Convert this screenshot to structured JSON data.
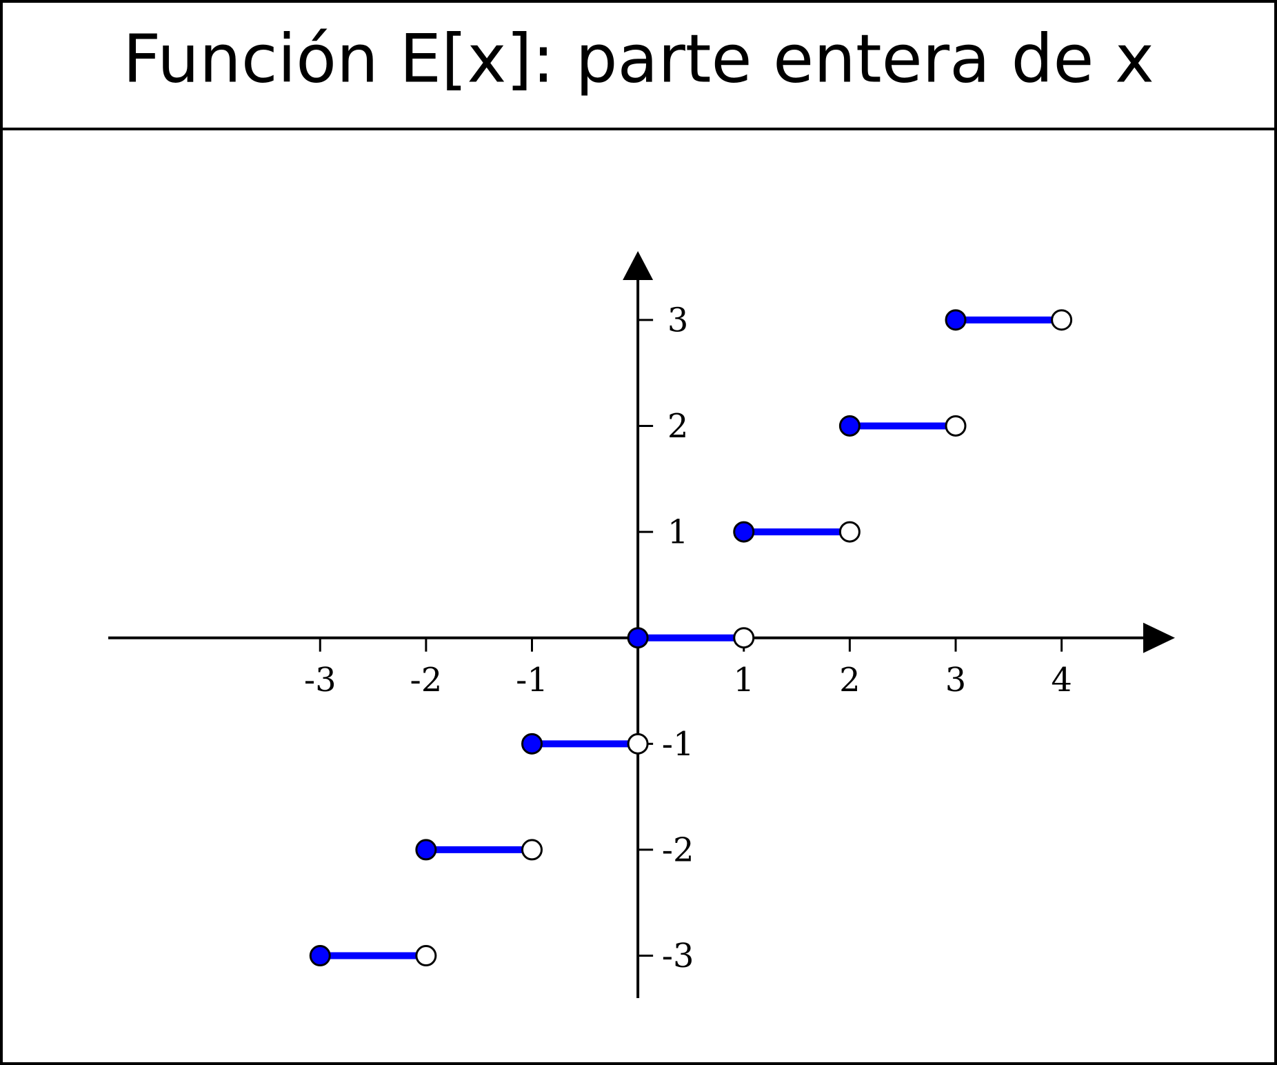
{
  "chart_data": {
    "type": "step",
    "title": "Función E[x]: parte entera de x",
    "x": [
      -3,
      -2,
      -1,
      0,
      1,
      2,
      3
    ],
    "x_open": [
      -2,
      -1,
      0,
      1,
      2,
      3,
      4
    ],
    "values": [
      -3,
      -2,
      -1,
      0,
      1,
      2,
      3
    ],
    "color": "#0000ff",
    "xlim": [
      -5,
      5.07
    ],
    "ylim": [
      -3.4,
      3.65
    ],
    "xticks": [
      -3,
      -2,
      -1,
      1,
      2,
      3,
      4
    ],
    "yticks": [
      -3,
      -2,
      -1,
      1,
      2,
      3
    ]
  }
}
